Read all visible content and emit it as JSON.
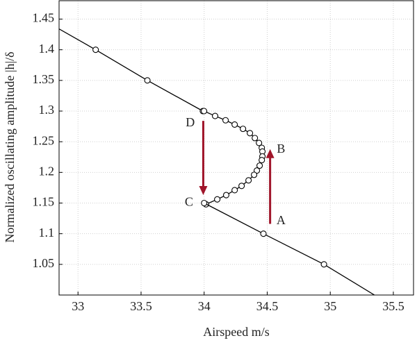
{
  "chart_data": {
    "type": "line",
    "x_label": "Airspeed m/s",
    "y_label": "Normalized oscillating amplitude |h|/δ",
    "xlim": [
      32.85,
      35.66
    ],
    "ylim": [
      1.0,
      1.48
    ],
    "xticks": [
      33,
      33.5,
      34,
      34.5,
      35,
      35.5
    ],
    "yticks": [
      1.05,
      1.1,
      1.15,
      1.2,
      1.25,
      1.3,
      1.35,
      1.4,
      1.45
    ],
    "grid": true,
    "series": [
      {
        "color": "#000000",
        "x": [
          32.85,
          33.14,
          33.55,
          33.99
        ],
        "values": [
          1.434,
          1.4,
          1.35,
          1.3
        ]
      },
      {
        "color": "#000000",
        "x": [
          33.999,
          34.087,
          34.17,
          34.242,
          34.308,
          34.363,
          34.402,
          34.435,
          34.457,
          34.462,
          34.462,
          34.457,
          34.44,
          34.418,
          34.396,
          34.352,
          34.297,
          34.242,
          34.175,
          34.104,
          34.015
        ],
        "values": [
          1.3,
          1.292,
          1.285,
          1.278,
          1.271,
          1.264,
          1.256,
          1.248,
          1.24,
          1.234,
          1.226,
          1.22,
          1.211,
          1.203,
          1.196,
          1.187,
          1.178,
          1.171,
          1.163,
          1.156,
          1.148
        ]
      },
      {
        "color": "#000000",
        "x": [
          34.0,
          34.47,
          34.95,
          35.35
        ],
        "values": [
          1.15,
          1.1,
          1.05,
          1.0
        ]
      }
    ],
    "arrows": [
      {
        "color": "#a0152a",
        "x": 34.523,
        "y_start": 1.116,
        "y_end": 1.238
      },
      {
        "color": "#a0152a",
        "x": 33.993,
        "y_start": 1.284,
        "y_end": 1.163
      }
    ],
    "annotations": [
      {
        "text": "A",
        "x": 34.61,
        "y": 1.12
      },
      {
        "text": "B",
        "x": 34.61,
        "y": 1.237
      },
      {
        "text": "C",
        "x": 33.88,
        "y": 1.15
      },
      {
        "text": "D",
        "x": 33.89,
        "y": 1.28
      }
    ]
  }
}
